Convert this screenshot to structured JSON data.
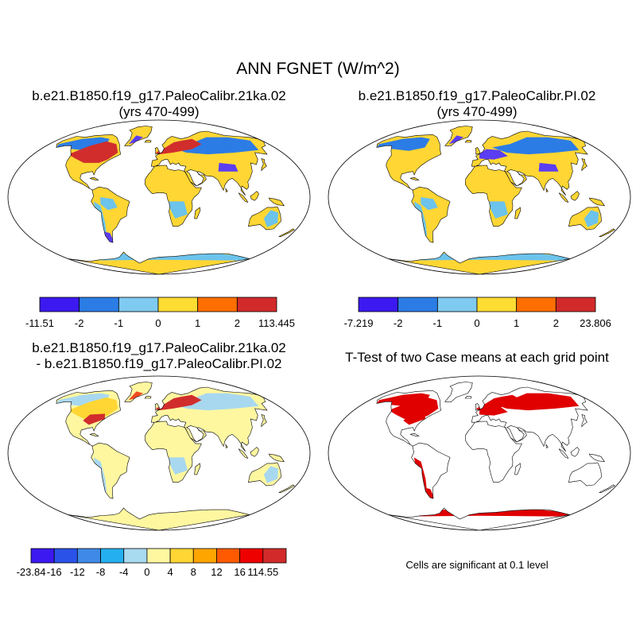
{
  "title": "ANN FGNET (W/m^2)",
  "panels": [
    {
      "title_line1": "b.e21.B1850.f19_g17.PaleoCalibr.21ka.02",
      "title_line2": "(yrs 470-499)",
      "land_color": "#ffd633",
      "highlight_colors": [
        "#5b3df2",
        "#2c7ce6",
        "#6cc3ec",
        "#d12d2d"
      ]
    },
    {
      "title_line1": "b.e21.B1850.f19_g17.PaleoCalibr.PI.02",
      "title_line2": "(yrs 470-499)",
      "land_color": "#ffd633",
      "highlight_colors": [
        "#5b3df2",
        "#2c7ce6",
        "#6cc3ec"
      ]
    },
    {
      "title_line1": "b.e21.B1850.f19_g17.PaleoCalibr.21ka.02",
      "title_line2": "- b.e21.B1850.f19_g17.PaleoCalibr.PI.02",
      "land_color": "#fff7a0",
      "highlight_colors": [
        "#a8d8f0",
        "#ffd633",
        "#d12d2d",
        "#f04a1e"
      ]
    },
    {
      "title_line1": "T-Test of two Case means at each grid point",
      "title_line2": "",
      "land_color": "#ffffff",
      "highlight_colors": [
        "#e00000"
      ]
    }
  ],
  "colorbars": [
    {
      "colors": [
        "#3c19f0",
        "#2c7ce6",
        "#7fcaf0",
        "#ffdc32",
        "#ff6e00",
        "#d22a2a"
      ],
      "labels": [
        "-11.51",
        "-2",
        "-1",
        "0",
        "1",
        "2",
        "113.445"
      ]
    },
    {
      "colors": [
        "#3c19f0",
        "#2c7ce6",
        "#7fcaf0",
        "#ffdc32",
        "#ff6e00",
        "#d22a2a"
      ],
      "labels": [
        "-7.219",
        "-2",
        "-1",
        "0",
        "1",
        "2",
        "23.806"
      ]
    },
    {
      "colors": [
        "#3c19f0",
        "#2a52e8",
        "#3f8ae8",
        "#24b0f0",
        "#a8daf0",
        "#fff7a0",
        "#ffd633",
        "#ffa500",
        "#ff5a00",
        "#ee0000",
        "#d22a2a"
      ],
      "labels": [
        "-23.84",
        "-16",
        "-12",
        "-8",
        "-4",
        "0",
        "4",
        "8",
        "12",
        "16",
        "114.55"
      ]
    }
  ],
  "footnote": "Cells are significant at 0.1 level"
}
